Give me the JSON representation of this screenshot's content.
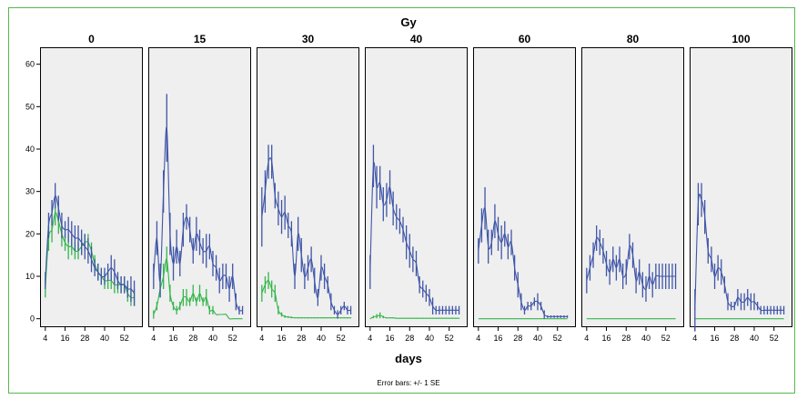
{
  "chart_data": {
    "type": "line",
    "title": "Gy",
    "xlabel": "days",
    "footnote": "Error bars: +/- 1 SE",
    "panels": [
      "0",
      "15",
      "30",
      "40",
      "60",
      "80",
      "100"
    ],
    "x_ticks": [
      4,
      16,
      28,
      40,
      52
    ],
    "xlim": [
      3,
      61
    ],
    "y_ticks": [
      0,
      10,
      20,
      30,
      40,
      50,
      60
    ],
    "ylim": [
      -2,
      64
    ],
    "grid": false,
    "colors": {
      "blue": "#3F55A8",
      "green": "#33B64A",
      "panel_bg": "#EFEFEF",
      "frame": "#55B84E"
    },
    "series_colors": [
      "#3F55A8",
      "#33B64A"
    ],
    "x": [
      4,
      6,
      8,
      10,
      12,
      14,
      16,
      18,
      20,
      22,
      24,
      26,
      28,
      30,
      32,
      34,
      36,
      38,
      40,
      42,
      44,
      46,
      48,
      50,
      52,
      54,
      56,
      58
    ],
    "data": [
      {
        "panel": "0",
        "series": [
          {
            "values": [
              9,
              22,
              25,
              29,
              26,
              22,
              21,
              21,
              20,
              19,
              19,
              18,
              17,
              16,
              14,
              12,
              11,
              10,
              10,
              11,
              12,
              11,
              9,
              8,
              8,
              7,
              7,
              6
            ],
            "se": [
              2,
              3,
              3,
              3,
              3,
              3,
              2,
              3,
              3,
              3,
              3,
              3,
              3,
              3,
              3,
              2,
              2,
              2,
              2,
              2,
              3,
              3,
              2,
              2,
              2,
              2,
              3,
              3
            ]
          },
          {
            "values": [
              7,
              19,
              21,
              25,
              23,
              20,
              18,
              17,
              17,
              16,
              16,
              17,
              18,
              18,
              16,
              13,
              11,
              10,
              9,
              9,
              9,
              8,
              8,
              8,
              8,
              6,
              5,
              5
            ],
            "se": [
              2,
              3,
              3,
              3,
              3,
              3,
              2,
              3,
              2,
              2,
              2,
              2,
              2,
              2,
              2,
              2,
              2,
              2,
              2,
              2,
              2,
              2,
              2,
              2,
              2,
              2,
              2,
              2
            ]
          }
        ]
      },
      {
        "panel": "15",
        "series": [
          {
            "values": [
              10,
              19,
              9,
              30,
              45,
              20,
              13,
              17,
              13,
              21,
              24,
              21,
              16,
              20,
              18,
              16,
              16,
              17,
              13,
              12,
              9,
              10,
              10,
              7,
              10,
              4,
              2,
              2
            ],
            "se": [
              3,
              4,
              4,
              5,
              8,
              5,
              4,
              4,
              3,
              4,
              3,
              3,
              3,
              4,
              3,
              3,
              4,
              3,
              3,
              3,
              3,
              3,
              3,
              3,
              3,
              2,
              1,
              1
            ]
          },
          {
            "values": [
              1,
              3,
              7,
              10,
              14,
              6,
              3,
              2,
              3,
              5,
              5,
              4,
              6,
              4,
              6,
              4,
              5,
              2,
              2,
              1,
              1,
              1,
              1,
              0,
              0,
              0,
              0,
              0
            ],
            "se": [
              1,
              1,
              2,
              3,
              3,
              2,
              1,
              1,
              1,
              2,
              2,
              1,
              2,
              1,
              2,
              1,
              2,
              1,
              1,
              0,
              0,
              0,
              0,
              0,
              0,
              0,
              0,
              0
            ]
          }
        ]
      },
      {
        "panel": "30",
        "series": [
          {
            "values": [
              24,
              30,
              37,
              37,
              29,
              26,
              24,
              25,
              22,
              20,
              10,
              20,
              15,
              10,
              12,
              14,
              9,
              5,
              12,
              10,
              8,
              4,
              2,
              1,
              2,
              3,
              2,
              2
            ],
            "se": [
              7,
              5,
              4,
              4,
              3,
              4,
              4,
              4,
              3,
              3,
              3,
              4,
              4,
              3,
              3,
              3,
              3,
              2,
              3,
              3,
              2,
              2,
              1,
              1,
              1,
              1,
              1,
              1
            ]
          },
          {
            "values": [
              6,
              8,
              9,
              7,
              6,
              2,
              1,
              0.5,
              0.4,
              0.3,
              0.2,
              0.2,
              0.2,
              0.2,
              0.2,
              0.2,
              0.2,
              0.2,
              0.2,
              0.2,
              0.2,
              0.2,
              0.2,
              0.2,
              0.2,
              0.2,
              0.2,
              0.2
            ],
            "se": [
              2,
              2,
              2,
              2,
              2,
              1,
              0.5,
              0.3,
              0.2,
              0.2,
              0.1,
              0.1,
              0.1,
              0.1,
              0.1,
              0.1,
              0.1,
              0.1,
              0.1,
              0.1,
              0.1,
              0.1,
              0.1,
              0.1,
              0.1,
              0.1,
              0.1,
              0.1
            ]
          }
        ]
      },
      {
        "panel": "40",
        "series": [
          {
            "values": [
              11,
              36,
              31,
              32,
              27,
              28,
              31,
              26,
              24,
              23,
              21,
              18,
              16,
              14,
              13,
              8,
              7,
              6,
              5,
              3,
              2,
              2,
              2,
              2,
              2,
              2,
              2,
              2
            ],
            "se": [
              4,
              5,
              5,
              4,
              4,
              4,
              4,
              4,
              3,
              3,
              3,
              4,
              4,
              3,
              3,
              2,
              2,
              2,
              2,
              2,
              1,
              1,
              1,
              1,
              1,
              1,
              1,
              1
            ]
          },
          {
            "values": [
              0,
              0.4,
              0.6,
              0.8,
              0.4,
              0.2,
              0.2,
              0.2,
              0.1,
              0.1,
              0.1,
              0.1,
              0.1,
              0.1,
              0.1,
              0.1,
              0.1,
              0.1,
              0.1,
              0.1,
              0.1,
              0.1,
              0.1,
              0.1,
              0.1,
              0.1,
              0.1,
              0.1
            ],
            "se": [
              0,
              0.3,
              0.5,
              0.7,
              0.3,
              0.1,
              0.1,
              0.1,
              0.1,
              0.1,
              0.1,
              0.1,
              0.1,
              0.1,
              0.1,
              0.1,
              0.1,
              0.1,
              0.1,
              0.1,
              0.1,
              0.1,
              0.1,
              0.1,
              0.1,
              0.1,
              0.1,
              0.1
            ]
          }
        ]
      },
      {
        "panel": "60",
        "series": [
          {
            "values": [
              16,
              22,
              26,
              17,
              18,
              23,
              20,
              18,
              20,
              17,
              18,
              12,
              8,
              4,
              2,
              3,
              3,
              4,
              4,
              3,
              1,
              0.5,
              0.5,
              0.5,
              0.5,
              0.5,
              0.5,
              0.5
            ],
            "se": [
              3,
              4,
              5,
              4,
              3,
              4,
              4,
              4,
              3,
              3,
              3,
              3,
              3,
              2,
              1,
              1,
              1,
              1,
              2,
              1,
              1,
              0.3,
              0.3,
              0.3,
              0.3,
              0.3,
              0.3,
              0.3
            ]
          },
          {
            "values": [
              0,
              0,
              0,
              0,
              0,
              0,
              0,
              0,
              0,
              0,
              0,
              0,
              0,
              0,
              0,
              0,
              0,
              0,
              0,
              0,
              0,
              0,
              0,
              0,
              0,
              0,
              0,
              0
            ],
            "se": [
              0,
              0,
              0,
              0,
              0,
              0,
              0,
              0,
              0,
              0,
              0,
              0,
              0,
              0,
              0,
              0,
              0,
              0,
              0,
              0,
              0,
              0,
              0,
              0,
              0,
              0,
              0,
              0
            ]
          }
        ]
      },
      {
        "panel": "80",
        "series": [
          {
            "values": [
              9,
              12,
              15,
              19,
              18,
              16,
              13,
              11,
              14,
              12,
              14,
              10,
              11,
              17,
              15,
              9,
              11,
              8,
              7,
              10,
              8,
              10,
              10,
              10,
              10,
              10,
              10,
              10
            ],
            "se": [
              3,
              3,
              3,
              3,
              3,
              3,
              3,
              3,
              3,
              3,
              3,
              3,
              3,
              3,
              3,
              3,
              3,
              3,
              3,
              3,
              3,
              3,
              3,
              3,
              3,
              3,
              3,
              3
            ]
          },
          {
            "values": [
              0,
              0,
              0,
              0,
              0,
              0,
              0,
              0,
              0,
              0,
              0,
              0,
              0,
              0,
              0,
              0,
              0,
              0,
              0,
              0,
              0,
              0,
              0,
              0,
              0,
              0,
              0,
              0
            ],
            "se": [
              0,
              0,
              0,
              0,
              0,
              0,
              0,
              0,
              0,
              0,
              0,
              0,
              0,
              0,
              0,
              0,
              0,
              0,
              0,
              0,
              0,
              0,
              0,
              0,
              0,
              0,
              0,
              0
            ]
          }
        ]
      },
      {
        "panel": "100",
        "series": [
          {
            "values": [
              2,
              27,
              28,
              24,
              16,
              14,
              10,
              12,
              11,
              8,
              4,
              3,
              3,
              5,
              4,
              4,
              5,
              4,
              4,
              3,
              2,
              2,
              2,
              2,
              2,
              2,
              2,
              2
            ],
            "se": [
              5,
              5,
              4,
              4,
              3,
              3,
              3,
              3,
              3,
              2,
              2,
              1,
              1,
              2,
              2,
              2,
              2,
              2,
              2,
              1,
              1,
              1,
              1,
              1,
              1,
              1,
              1,
              1
            ]
          },
          {
            "values": [
              0,
              0,
              0,
              0,
              0,
              0,
              0,
              0,
              0,
              0,
              0,
              0,
              0,
              0,
              0,
              0,
              0,
              0,
              0,
              0,
              0,
              0,
              0,
              0,
              0,
              0,
              0,
              0
            ],
            "se": [
              0,
              0,
              0,
              0,
              0,
              0,
              0,
              0,
              0,
              0,
              0,
              0,
              0,
              0,
              0,
              0,
              0,
              0,
              0,
              0,
              0,
              0,
              0,
              0,
              0,
              0,
              0,
              0
            ]
          }
        ]
      }
    ]
  }
}
